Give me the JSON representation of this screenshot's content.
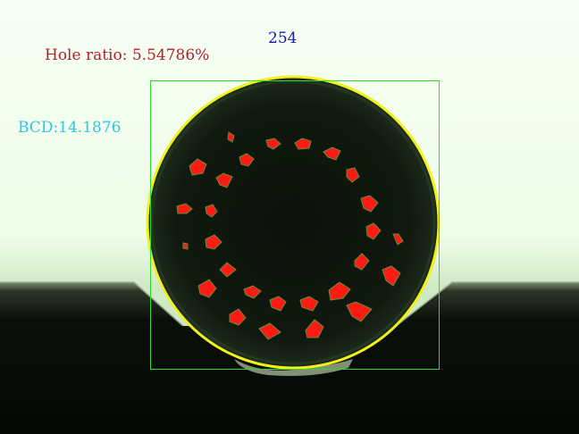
{
  "overlay": {
    "hole_ratio": "Hole ratio: 5.54786%",
    "bcd": "BCD:14.1876",
    "count": "254"
  },
  "colors": {
    "hole_ratio_text": "#b3202a",
    "bcd_text": "#2fc6e6",
    "count_text": "#1a1aa8",
    "hole_fill": "#ff1a14",
    "circle_outline": "#f2f21a",
    "bounding_box": "#33d933",
    "background_bright": "#f4fff0",
    "fixture_dark": "#0a0d08",
    "fiber_core": "#10160f"
  }
}
